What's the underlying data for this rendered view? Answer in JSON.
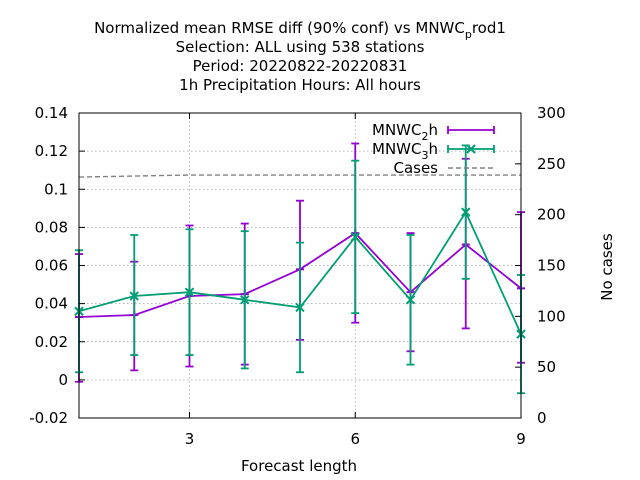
{
  "chart_data": {
    "type": "line",
    "title_lines": [
      "Normalized mean RMSE diff (90% conf) vs MNWC_prod1",
      "Selection: ALL using   538 stations",
      "Period: 20220822-20220831",
      "1h Precipitation   Hours:  All hours"
    ],
    "title_main_prefix": "Normalized mean RMSE diff (90% conf) vs MNWC",
    "title_main_sub": "p",
    "title_main_suffix": "rod1",
    "xlabel": "Forecast length",
    "ylabel_right": "No cases",
    "xlim": [
      1,
      9
    ],
    "ylim": [
      -0.02,
      0.14
    ],
    "y2lim": [
      0,
      300
    ],
    "x_ticks": [
      3,
      6,
      9
    ],
    "x_tick_labels": [
      "3",
      "6",
      "9"
    ],
    "y_ticks": [
      -0.02,
      0,
      0.02,
      0.04,
      0.06,
      0.08,
      0.1,
      0.12,
      0.14
    ],
    "y_tick_labels": [
      "-0.02",
      "0",
      "0.02",
      "0.04",
      "0.06",
      "0.08",
      "0.1",
      "0.12",
      "0.14"
    ],
    "y2_ticks": [
      0,
      50,
      100,
      150,
      200,
      250,
      300
    ],
    "y2_tick_labels": [
      "0",
      "50",
      "100",
      "150",
      "200",
      "250",
      "300"
    ],
    "grid": true,
    "legend_position": "top-right",
    "series": [
      {
        "name": "MNWC_2h",
        "name_prefix": "MNWC",
        "name_sub": "2",
        "name_suffix": "h",
        "color": "#9400d3",
        "marker": "plus",
        "x": [
          1,
          2,
          3,
          4,
          5,
          6,
          7,
          8,
          9
        ],
        "y": [
          0.033,
          0.034,
          0.044,
          0.045,
          0.058,
          0.077,
          0.046,
          0.071,
          0.048
        ],
        "y_low": [
          -0.001,
          0.005,
          0.007,
          0.008,
          0.021,
          0.03,
          0.015,
          0.027,
          0.009
        ],
        "y_high": [
          0.066,
          0.062,
          0.081,
          0.082,
          0.094,
          0.124,
          0.077,
          0.116,
          0.088
        ]
      },
      {
        "name": "MNWC_3h",
        "name_prefix": "MNWC",
        "name_sub": "3",
        "name_suffix": "h",
        "color": "#009e73",
        "marker": "x",
        "x": [
          1,
          2,
          3,
          4,
          5,
          6,
          7,
          8,
          9
        ],
        "y": [
          0.036,
          0.044,
          0.046,
          0.042,
          0.038,
          0.075,
          0.042,
          0.088,
          0.024
        ],
        "y_low": [
          0.004,
          0.013,
          0.013,
          0.006,
          0.004,
          0.035,
          0.008,
          0.053,
          -0.007
        ],
        "y_high": [
          0.068,
          0.076,
          0.079,
          0.078,
          0.072,
          0.115,
          0.076,
          0.123,
          0.055
        ]
      }
    ],
    "cases": {
      "name": "Cases",
      "color": "#808080",
      "axis": "right",
      "x": [
        1,
        2,
        3,
        4,
        5,
        6,
        7,
        8,
        9
      ],
      "y": [
        237,
        238,
        239,
        239,
        239,
        239,
        239,
        239,
        239
      ]
    }
  }
}
